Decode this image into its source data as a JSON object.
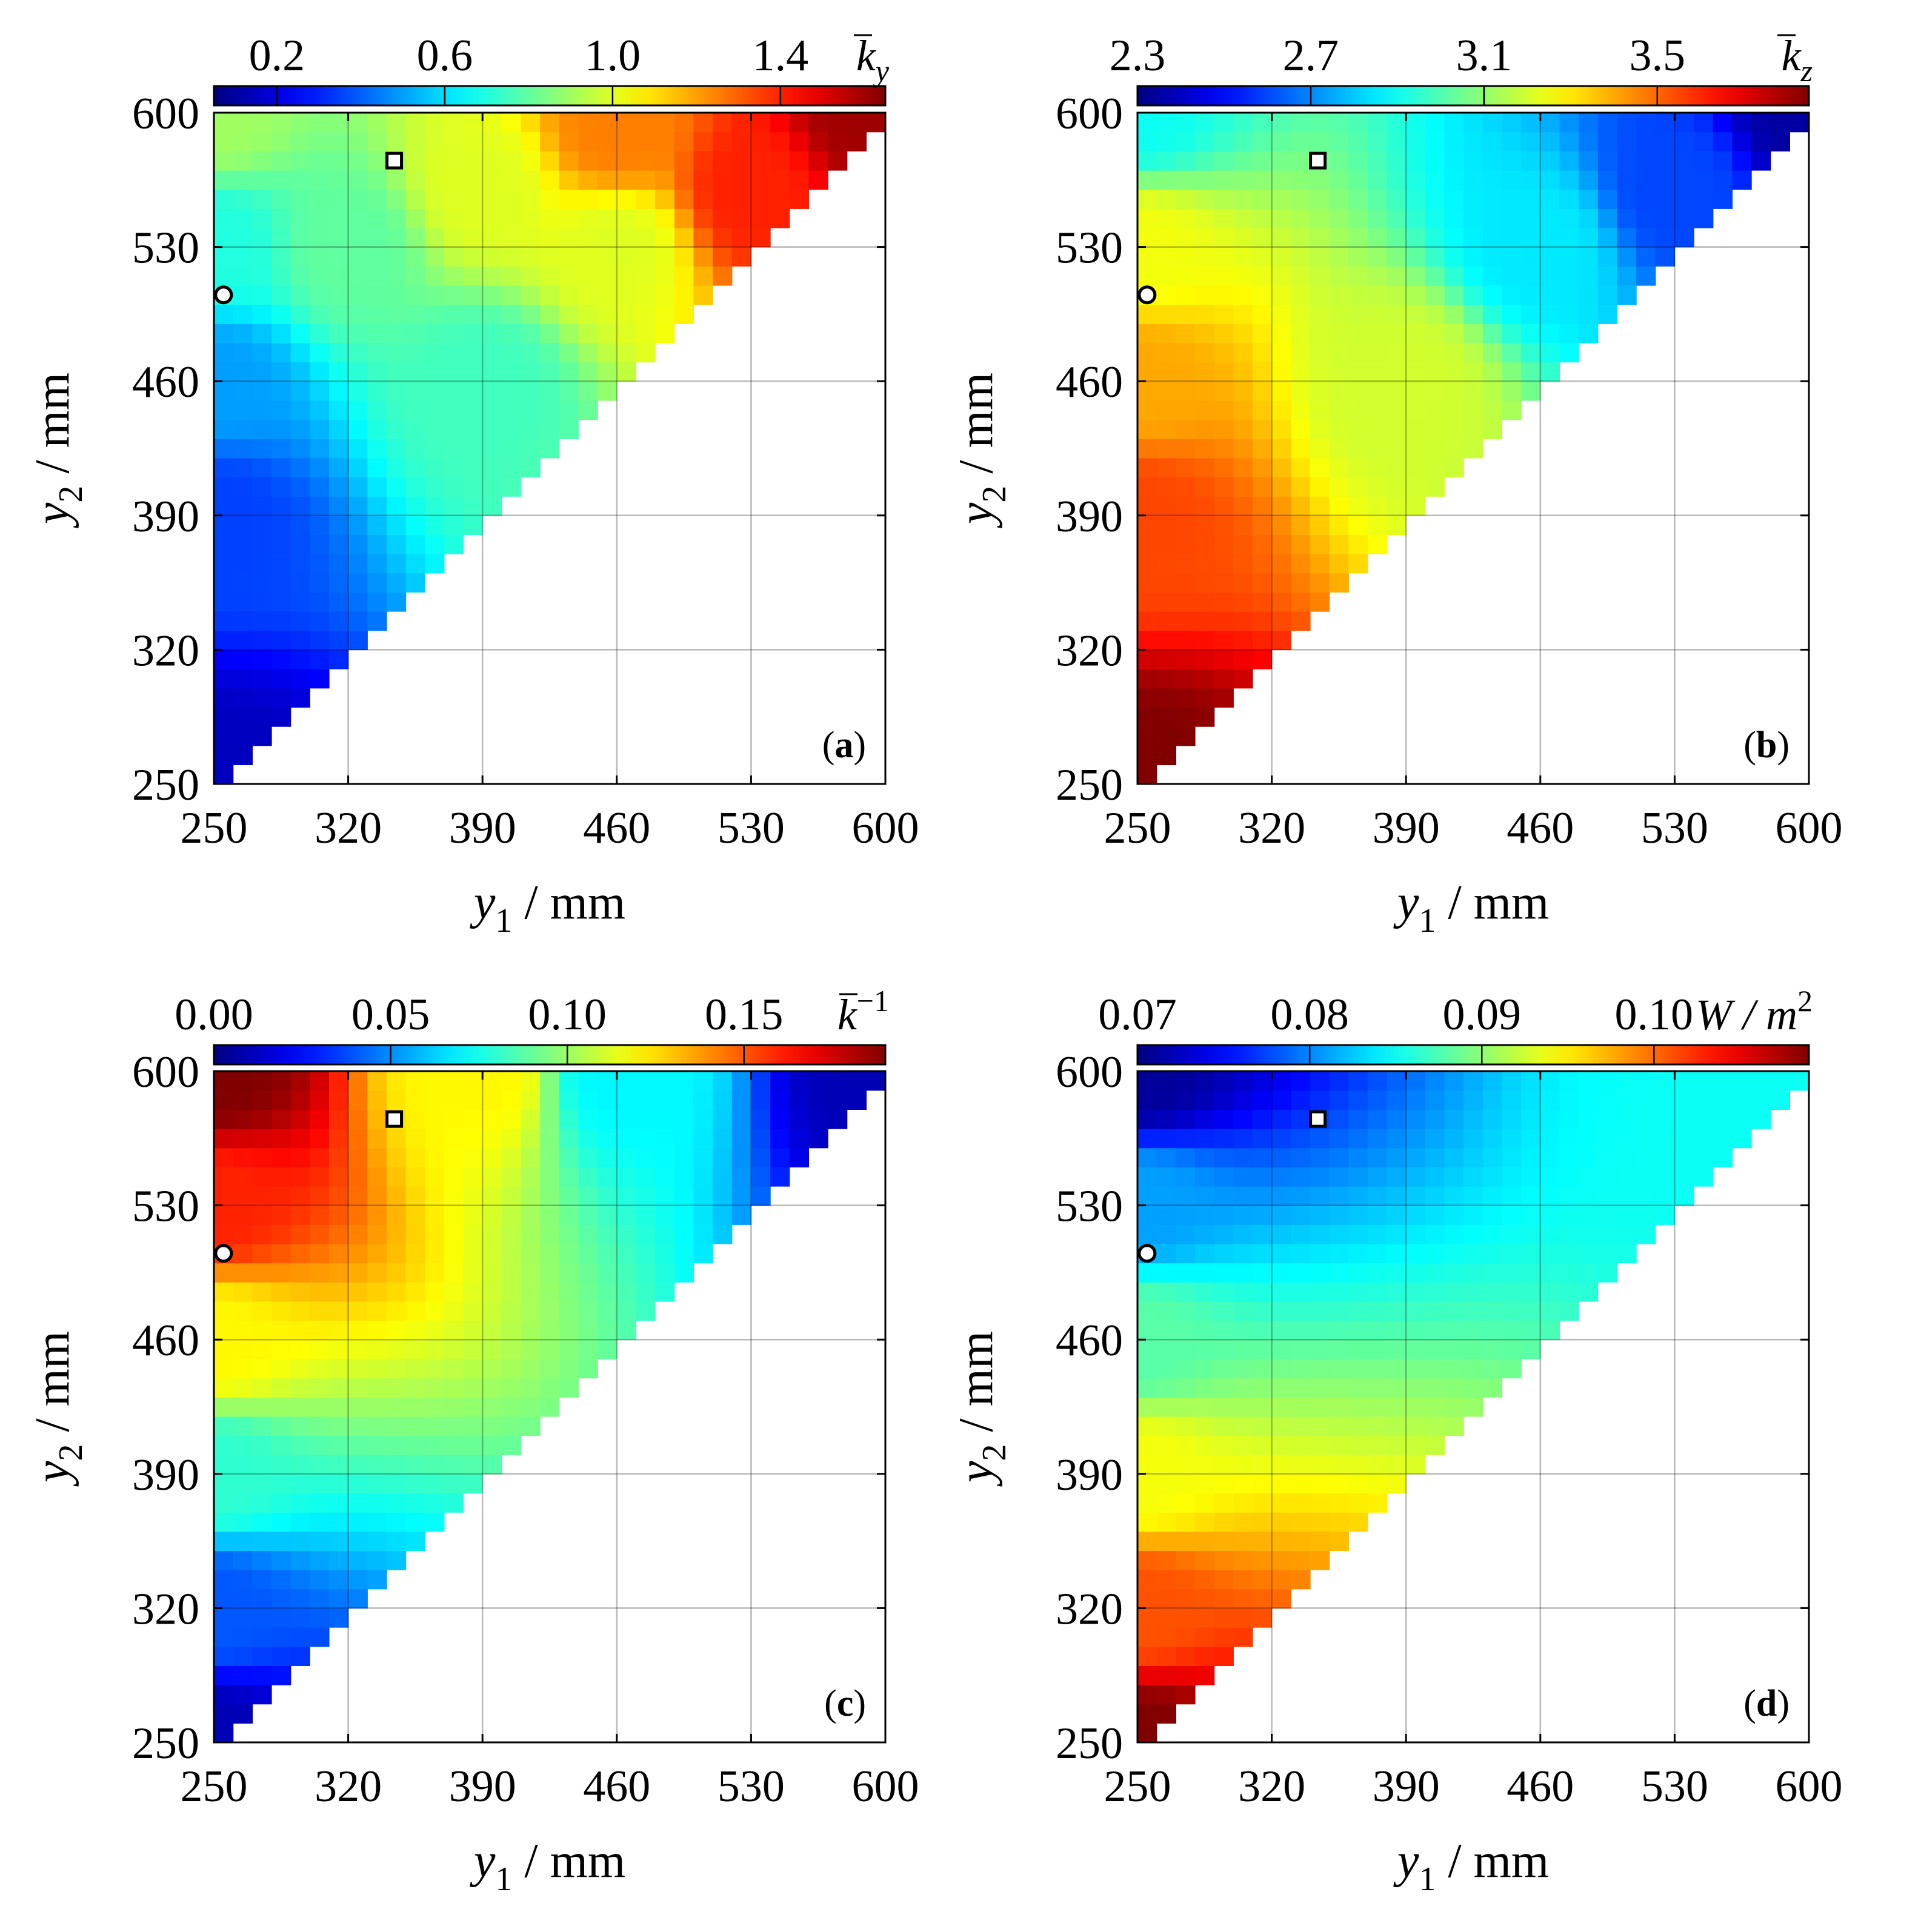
{
  "figure": {
    "grid": true,
    "x_axis": {
      "variable": "y",
      "subscript": "1",
      "unit": "mm",
      "ticks": [
        "250",
        "320",
        "390",
        "460",
        "530",
        "600"
      ],
      "lim": [
        250,
        600
      ]
    },
    "y_axis": {
      "variable": "y",
      "subscript": "2",
      "unit": "mm",
      "ticks": [
        "250",
        "320",
        "390",
        "460",
        "530",
        "600"
      ],
      "lim": [
        250,
        600
      ]
    },
    "colormap": "jet",
    "markers": [
      {
        "name": "circle",
        "shape": "circle",
        "y1": 255,
        "y2": 505
      },
      {
        "name": "square",
        "shape": "square",
        "y1": 344,
        "y2": 575
      }
    ]
  },
  "chart_data": [
    {
      "type": "heatmap",
      "panel": "(a)",
      "panel_letter": "a",
      "colorbar": {
        "label_base": "k",
        "label_sub": "y",
        "label_sup": "",
        "ticks": [
          "0.2",
          "0.6",
          "1.0",
          "1.4"
        ],
        "tick_values": [
          0.2,
          0.6,
          1.0,
          1.4
        ],
        "range": [
          0.05,
          1.65
        ]
      },
      "region": "y2 >= y1",
      "x_range": [
        250,
        600
      ],
      "y_range": [
        250,
        600
      ],
      "value_samples": [
        {
          "y1": 250,
          "y2": 250,
          "value": 0.15
        },
        {
          "y1": 250,
          "y2": 390,
          "value": 0.35
        },
        {
          "y1": 250,
          "y2": 460,
          "value": 0.5
        },
        {
          "y1": 250,
          "y2": 530,
          "value": 0.7
        },
        {
          "y1": 250,
          "y2": 600,
          "value": 0.9
        },
        {
          "y1": 320,
          "y2": 530,
          "value": 0.8
        },
        {
          "y1": 390,
          "y2": 460,
          "value": 0.75
        },
        {
          "y1": 390,
          "y2": 560,
          "value": 1.0
        },
        {
          "y1": 460,
          "y2": 530,
          "value": 1.0
        },
        {
          "y1": 460,
          "y2": 590,
          "value": 1.25
        },
        {
          "y1": 530,
          "y2": 560,
          "value": 1.4
        },
        {
          "y1": 590,
          "y2": 600,
          "value": 1.6
        }
      ],
      "markers_values": {
        "circle": 0.62,
        "square": 0.95
      }
    },
    {
      "type": "heatmap",
      "panel": "(b)",
      "panel_letter": "b",
      "colorbar": {
        "label_base": "k",
        "label_sub": "z",
        "label_sup": "",
        "ticks": [
          "2.3",
          "2.7",
          "3.1",
          "3.5"
        ],
        "tick_values": [
          2.3,
          2.7,
          3.1,
          3.5
        ],
        "range": [
          2.3,
          3.85
        ]
      },
      "region": "y2 >= y1",
      "x_range": [
        250,
        600
      ],
      "y_range": [
        250,
        600
      ],
      "value_samples": [
        {
          "y1": 250,
          "y2": 250,
          "value": 3.85
        },
        {
          "y1": 250,
          "y2": 390,
          "value": 3.55
        },
        {
          "y1": 250,
          "y2": 460,
          "value": 3.4
        },
        {
          "y1": 250,
          "y2": 530,
          "value": 3.25
        },
        {
          "y1": 250,
          "y2": 600,
          "value": 2.9
        },
        {
          "y1": 390,
          "y2": 460,
          "value": 3.2
        },
        {
          "y1": 460,
          "y2": 530,
          "value": 2.85
        },
        {
          "y1": 530,
          "y2": 560,
          "value": 2.6
        },
        {
          "y1": 600,
          "y2": 600,
          "value": 2.35
        }
      ],
      "markers_values": {
        "circle": 3.3,
        "square": 2.8
      }
    },
    {
      "type": "heatmap",
      "panel": "(c)",
      "panel_letter": "c",
      "colorbar": {
        "label_base": "k",
        "label_sub": "",
        "label_sup": "−1",
        "ticks": [
          "0.00",
          "0.05",
          "0.10",
          "0.15"
        ],
        "tick_values": [
          0.0,
          0.05,
          0.1,
          0.15
        ],
        "range": [
          0.0,
          0.19
        ]
      },
      "region": "y2 >= y1",
      "x_range": [
        250,
        600
      ],
      "y_range": [
        250,
        600
      ],
      "value_samples": [
        {
          "y1": 250,
          "y2": 250,
          "value": 0.01
        },
        {
          "y1": 250,
          "y2": 320,
          "value": 0.04
        },
        {
          "y1": 250,
          "y2": 390,
          "value": 0.08
        },
        {
          "y1": 250,
          "y2": 460,
          "value": 0.12
        },
        {
          "y1": 250,
          "y2": 530,
          "value": 0.16
        },
        {
          "y1": 250,
          "y2": 600,
          "value": 0.19
        },
        {
          "y1": 390,
          "y2": 600,
          "value": 0.12
        },
        {
          "y1": 460,
          "y2": 600,
          "value": 0.07
        },
        {
          "y1": 600,
          "y2": 600,
          "value": 0.01
        }
      ],
      "markers_values": {
        "circle": 0.15,
        "square": 0.13
      }
    },
    {
      "type": "heatmap",
      "panel": "(d)",
      "panel_letter": "d",
      "colorbar": {
        "label_base": "W / m",
        "label_sub": "",
        "label_sup": "2",
        "ticks": [
          "0.07",
          "0.08",
          "0.09",
          "0.10"
        ],
        "tick_values": [
          0.07,
          0.08,
          0.09,
          0.1
        ],
        "range": [
          0.07,
          0.109
        ]
      },
      "region": "y2 >= y1",
      "x_range": [
        250,
        600
      ],
      "y_range": [
        250,
        600
      ],
      "value_samples": [
        {
          "y1": 250,
          "y2": 250,
          "value": 0.109
        },
        {
          "y1": 250,
          "y2": 320,
          "value": 0.101
        },
        {
          "y1": 250,
          "y2": 390,
          "value": 0.094
        },
        {
          "y1": 250,
          "y2": 460,
          "value": 0.088
        },
        {
          "y1": 250,
          "y2": 530,
          "value": 0.081
        },
        {
          "y1": 250,
          "y2": 600,
          "value": 0.071
        },
        {
          "y1": 600,
          "y2": 600,
          "value": 0.085
        }
      ],
      "markers_values": {
        "circle": 0.082,
        "square": 0.072
      }
    }
  ]
}
